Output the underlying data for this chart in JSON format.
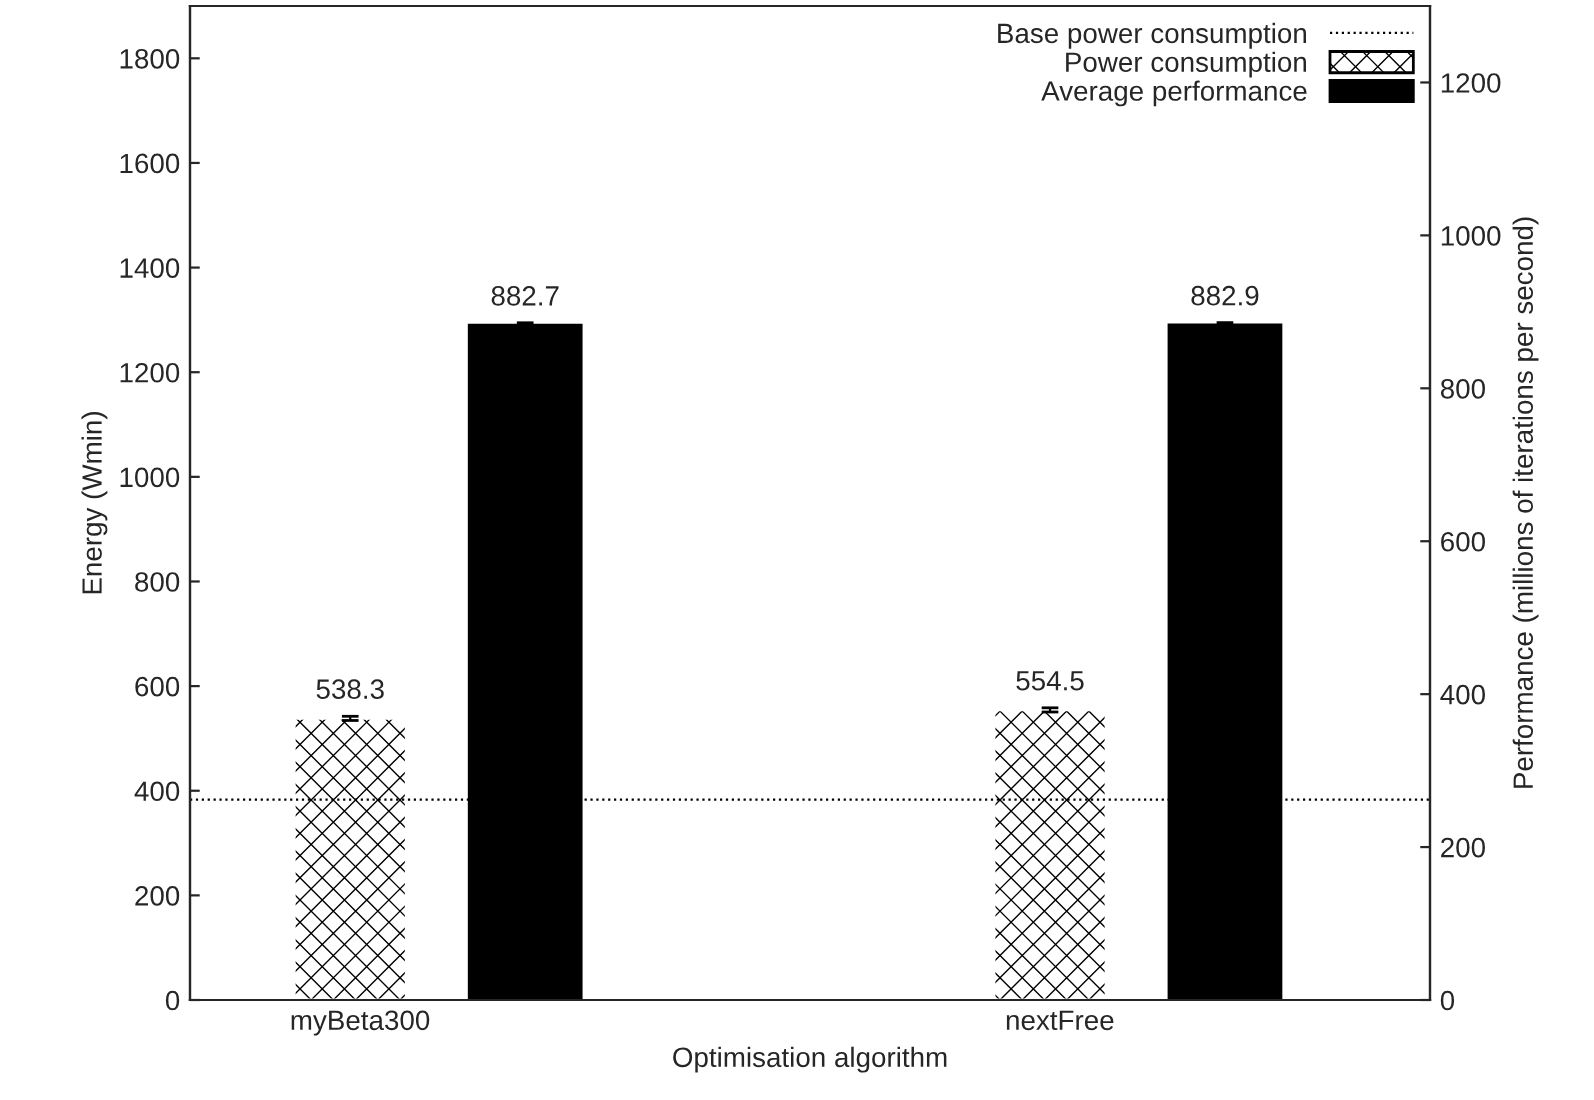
{
  "chart_data": {
    "type": "bar",
    "xlabel": "Optimisation algorithm",
    "ylabel": "Energy (Wmin)",
    "y2label": "Performance (millions of iterations per second)",
    "categories": [
      "myBeta300",
      "nextFree"
    ],
    "series": [
      {
        "name": "Power consumption",
        "color": "#ffffff",
        "values": [
          538.3,
          554.5
        ],
        "errors": [
          4,
          4
        ]
      },
      {
        "name": "Average performance",
        "color": "#000000",
        "values": [
          882.7,
          882.9
        ],
        "errors": [
          3,
          3
        ],
        "axis": "y2"
      }
    ],
    "ref_lines": [
      {
        "axis": "y",
        "value": 383,
        "label": "Base power consumption",
        "color": "#000000",
        "line_style": "dotted"
      }
    ],
    "ylim": [
      0,
      1900
    ],
    "yticks": [
      0,
      200,
      400,
      600,
      800,
      1000,
      1200,
      1400,
      1600,
      1800
    ],
    "y2lim": [
      0,
      1300
    ],
    "y2ticks": [
      0,
      200,
      400,
      600,
      800,
      1000,
      1200
    ],
    "data_labels": true,
    "legend": "top right",
    "grid": false
  }
}
